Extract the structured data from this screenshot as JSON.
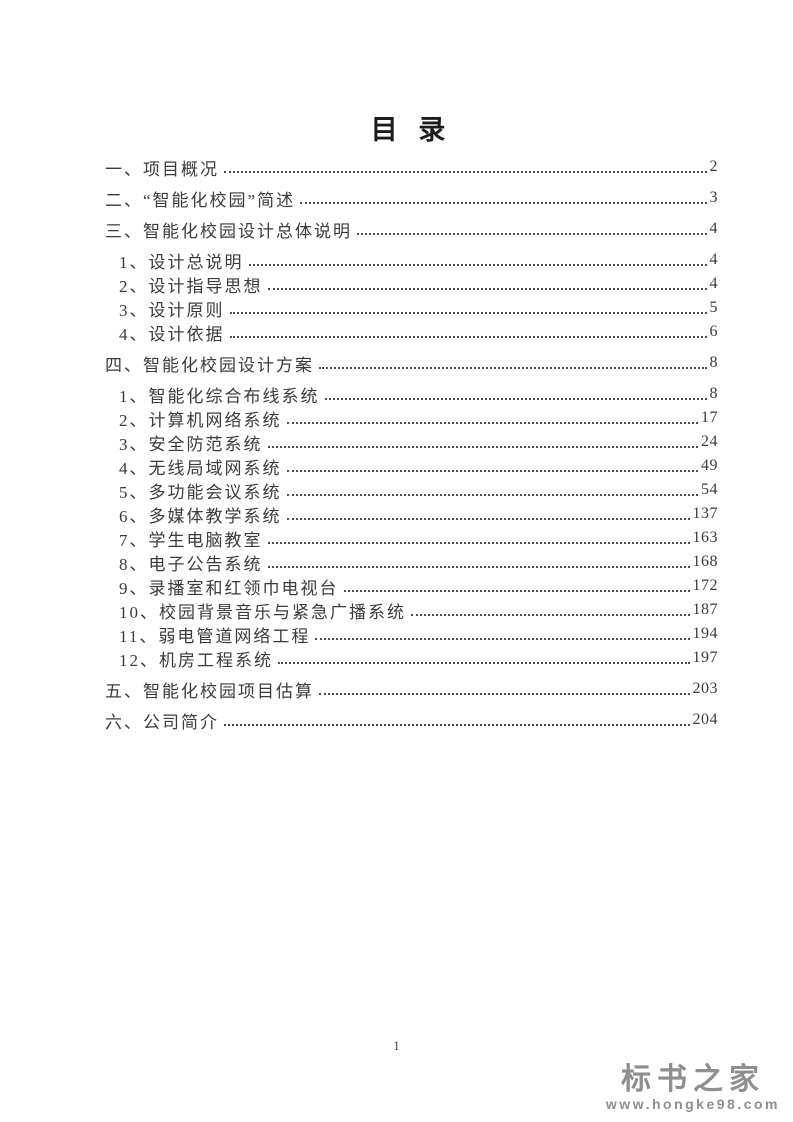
{
  "page": {
    "title": "目 录",
    "page_number": "1"
  },
  "toc": {
    "entries": [
      {
        "level": "main",
        "label": "一、项目概况",
        "page": "2"
      },
      {
        "level": "main",
        "label": "二、“智能化校园”简述",
        "page": "3"
      },
      {
        "level": "main",
        "label": "三、智能化校园设计总体说明",
        "page": "4"
      },
      {
        "level": "sub",
        "label": "1、设计总说明",
        "page": "4"
      },
      {
        "level": "sub",
        "label": "2、设计指导思想",
        "page": "4"
      },
      {
        "level": "sub",
        "label": "3、设计原则",
        "page": "5"
      },
      {
        "level": "sub",
        "label": "4、设计依据",
        "page": "6"
      },
      {
        "level": "main",
        "label": "四、智能化校园设计方案",
        "page": "8"
      },
      {
        "level": "sub",
        "label": "1、智能化综合布线系统",
        "page": "8"
      },
      {
        "level": "sub",
        "label": "2、计算机网络系统",
        "page": "17"
      },
      {
        "level": "sub",
        "label": "3、安全防范系统",
        "page": "24"
      },
      {
        "level": "sub",
        "label": "4、无线局域网系统",
        "page": "49"
      },
      {
        "level": "sub",
        "label": "5、多功能会议系统",
        "page": "54"
      },
      {
        "level": "sub",
        "label": "6、多媒体教学系统",
        "page": "137"
      },
      {
        "level": "sub",
        "label": "7、学生电脑教室",
        "page": "163"
      },
      {
        "level": "sub",
        "label": "8、电子公告系统",
        "page": "168"
      },
      {
        "level": "sub",
        "label": "9、录播室和红领巾电视台",
        "page": "172"
      },
      {
        "level": "sub",
        "label": "10、校园背景音乐与紧急广播系统",
        "page": "187"
      },
      {
        "level": "sub",
        "label": "11、弱电管道网络工程",
        "page": "194"
      },
      {
        "level": "sub",
        "label": "12、机房工程系统",
        "page": "197"
      },
      {
        "level": "main",
        "label": "五、智能化校园项目估算",
        "page": "203"
      },
      {
        "level": "main",
        "label": "六、公司简介",
        "page": "204"
      }
    ]
  },
  "watermark": {
    "brand": "标书之家",
    "site": "www.hongke98.com"
  },
  "colors": {
    "text": "#3b3b3b",
    "title": "#1c1c1c",
    "watermark_gray": "#8f8f8f"
  }
}
